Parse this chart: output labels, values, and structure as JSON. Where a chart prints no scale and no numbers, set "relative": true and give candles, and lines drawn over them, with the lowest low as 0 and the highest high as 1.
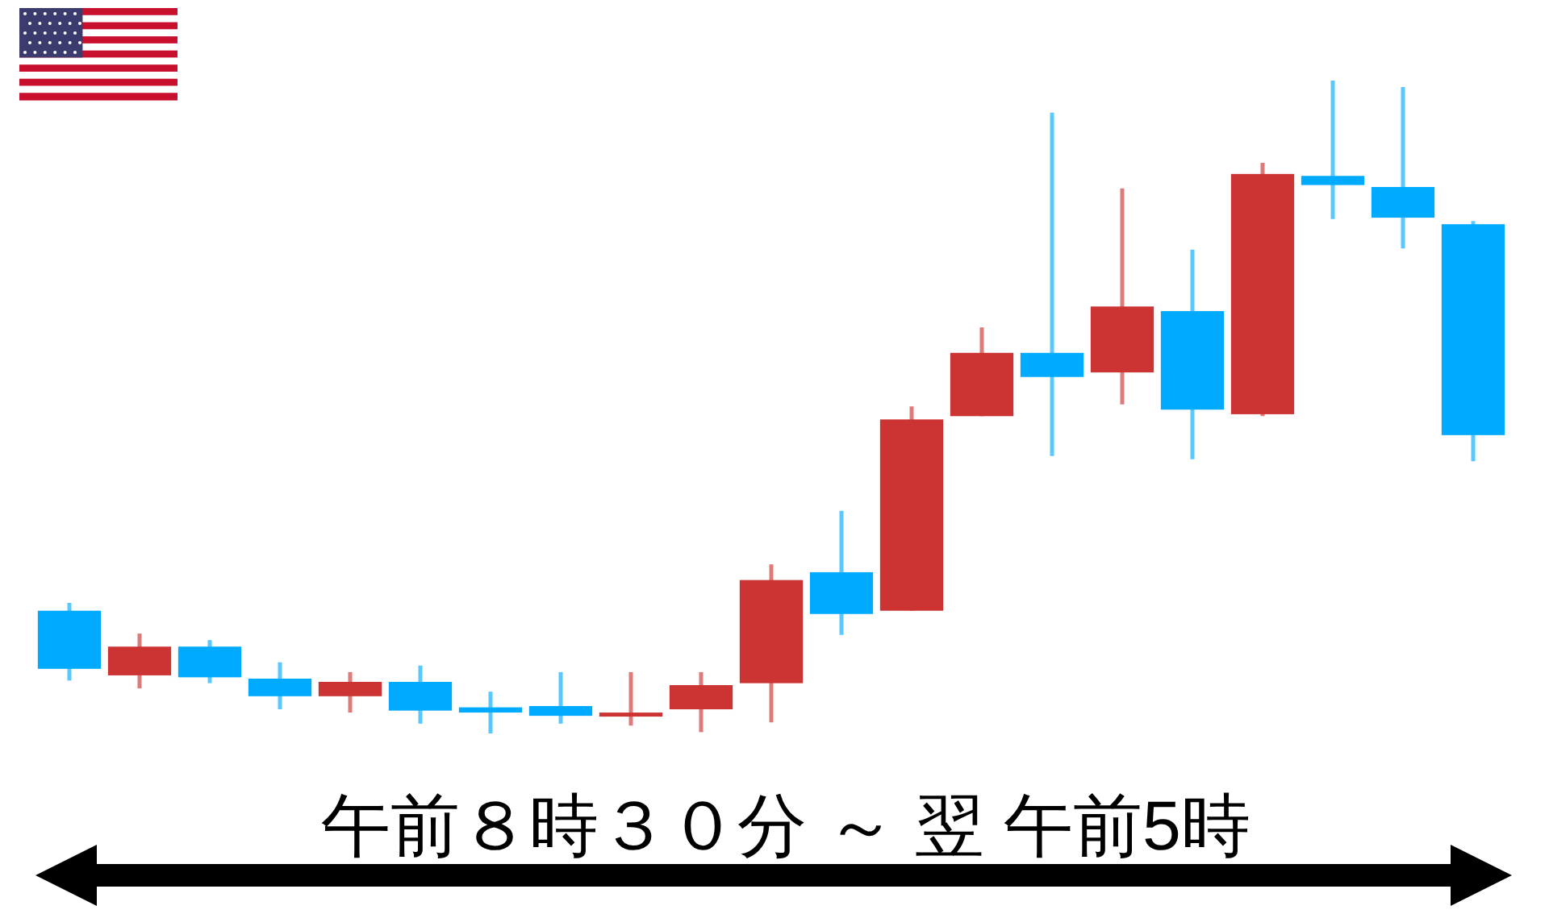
{
  "chart_data": {
    "type": "candlestick",
    "relative": true,
    "categories": [
      null,
      null,
      null,
      null,
      null,
      null,
      null,
      null,
      null,
      null,
      null,
      null,
      null,
      null,
      null,
      null,
      null,
      null,
      null,
      null,
      null
    ],
    "ohlc": [
      [
        0.188,
        0.2,
        0.081,
        0.099
      ],
      [
        0.089,
        0.153,
        0.069,
        0.133
      ],
      [
        0.133,
        0.143,
        0.077,
        0.086
      ],
      [
        0.084,
        0.109,
        0.037,
        0.057
      ],
      [
        0.057,
        0.094,
        0.032,
        0.079
      ],
      [
        0.079,
        0.104,
        0.015,
        0.035
      ],
      [
        0.04,
        0.064,
        0.0,
        0.032
      ],
      [
        0.042,
        0.094,
        0.015,
        0.027
      ],
      [
        0.027,
        0.094,
        0.012,
        0.032
      ],
      [
        0.037,
        0.094,
        0.002,
        0.074
      ],
      [
        0.077,
        0.259,
        0.017,
        0.235
      ],
      [
        0.247,
        0.341,
        0.151,
        0.183
      ],
      [
        0.188,
        0.501,
        0.188,
        0.481
      ],
      [
        0.486,
        0.622,
        0.486,
        0.583
      ],
      [
        0.583,
        0.951,
        0.425,
        0.546
      ],
      [
        0.553,
        0.835,
        0.504,
        0.654
      ],
      [
        0.647,
        0.741,
        0.42,
        0.496
      ],
      [
        0.489,
        0.874,
        0.486,
        0.857
      ],
      [
        0.854,
        1.0,
        0.788,
        0.84
      ],
      [
        0.837,
        0.99,
        0.743,
        0.79
      ],
      [
        0.78,
        0.785,
        0.417,
        0.457
      ]
    ],
    "colors": [
      "#00aaff",
      "#cc3333",
      "#00aaff",
      "#00aaff",
      "#cc3333",
      "#00aaff",
      "#00aaff",
      "#00aaff",
      "#cc3333",
      "#cc3333",
      "#cc3333",
      "#00aaff",
      "#cc3333",
      "#cc3333",
      "#00aaff",
      "#cc3333",
      "#00aaff",
      "#cc3333",
      "#00aaff",
      "#00aaff",
      "#00aaff"
    ],
    "annotations": [
      "午前８時３０分 ～ 翌 午前5時"
    ]
  }
}
